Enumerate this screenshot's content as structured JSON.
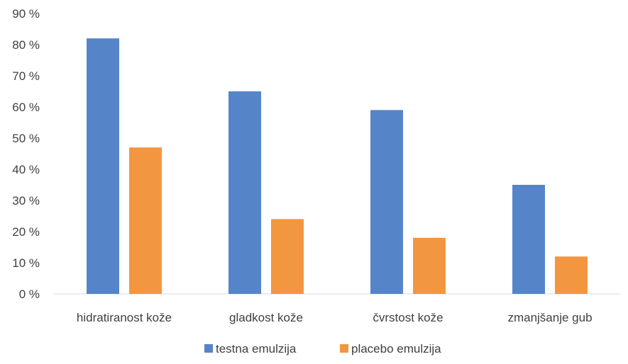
{
  "chart_data": {
    "type": "bar",
    "categories": [
      "hidratiranost kože",
      "gladkost kože",
      "čvrstost kože",
      "zmanjšanje gub"
    ],
    "series": [
      {
        "name": "testna emulzija",
        "color": "#5585C8",
        "values": [
          82,
          65,
          59,
          35
        ]
      },
      {
        "name": "placebo emulzija",
        "color": "#F39640",
        "values": [
          47,
          24,
          18,
          12
        ]
      }
    ],
    "ylim": [
      0,
      90
    ],
    "yticks": [
      "0 %",
      "10 %",
      "20 %",
      "30 %",
      "40 %",
      "50 %",
      "60 %",
      "70 %",
      "80 %",
      "90 %"
    ],
    "grid": false,
    "legend": "bottom-center",
    "title": "",
    "xlabel": "",
    "ylabel": ""
  }
}
